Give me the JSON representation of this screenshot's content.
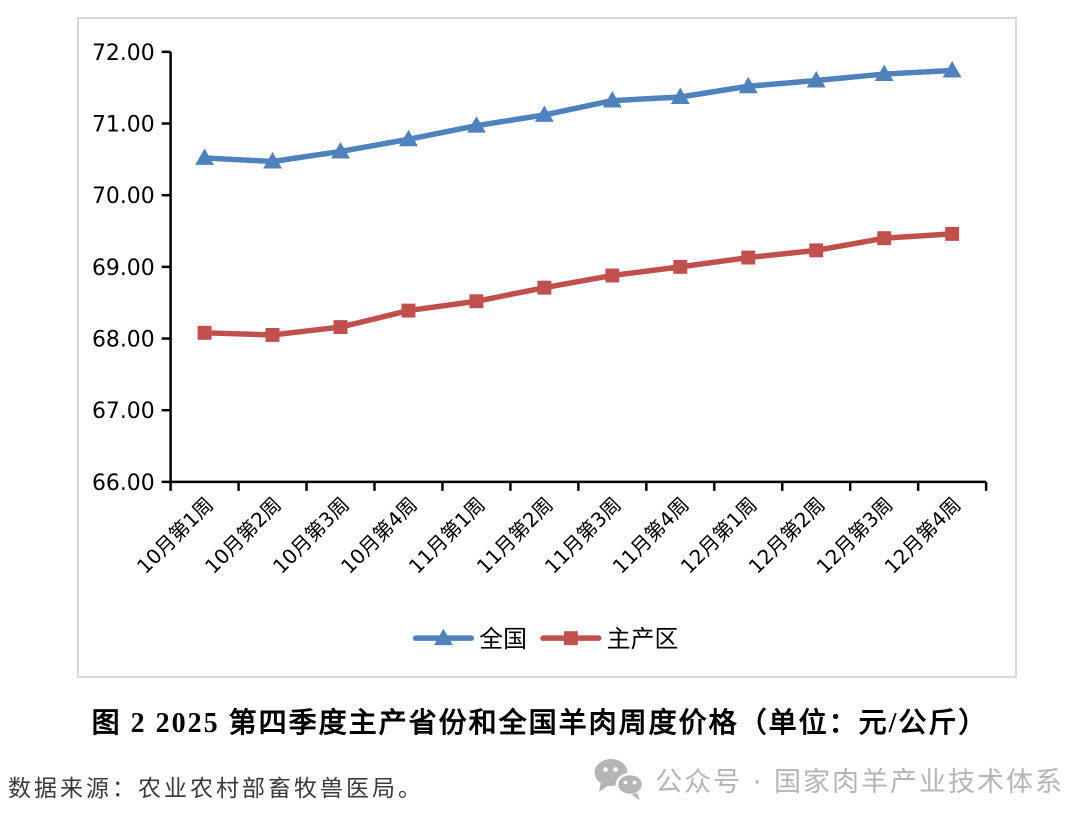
{
  "caption": {
    "text": "图 2  2025 第四季度主产省份和全国羊肉周度价格（单位：元/公斤）"
  },
  "footer": {
    "source_note": "数据来源：农业农村部畜牧兽医局。",
    "watermark_icon": "wechat-icon",
    "watermark_text": "公众号 · 国家肉羊产业技术体系"
  },
  "chart_data": {
    "type": "line",
    "title": "",
    "categories": [
      "10月第1周",
      "10月第2周",
      "10月第3周",
      "10月第4周",
      "11月第1周",
      "11月第2周",
      "11月第3周",
      "11月第4周",
      "12月第1周",
      "12月第2周",
      "12月第3周",
      "12月第4周"
    ],
    "series": [
      {
        "name": "全国",
        "color": "#4F81BD",
        "marker": "triangle",
        "values": [
          70.52,
          70.47,
          70.61,
          70.78,
          70.97,
          71.12,
          71.32,
          71.37,
          71.52,
          71.6,
          71.69,
          71.74
        ]
      },
      {
        "name": "主产区",
        "color": "#C0504D",
        "marker": "square",
        "values": [
          68.08,
          68.05,
          68.16,
          68.39,
          68.52,
          68.71,
          68.88,
          69.0,
          69.13,
          69.23,
          69.4,
          69.46
        ]
      }
    ],
    "ylim": [
      66,
      72
    ],
    "ytick_step": 1,
    "ytick_labels": [
      "66.00",
      "67.00",
      "68.00",
      "69.00",
      "70.00",
      "71.00",
      "72.00"
    ],
    "grid": false,
    "legend_position": "bottom",
    "x_label_rotation": -45,
    "axis_color": "#000000"
  }
}
